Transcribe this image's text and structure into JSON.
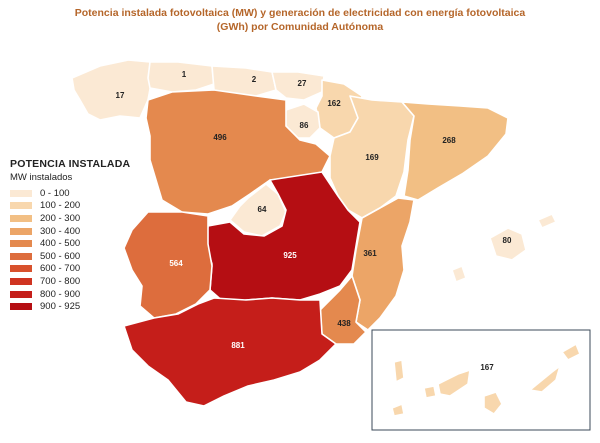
{
  "title_line1": "Potencia instalada fotovoltaica (MW) y generación de electricidad con energía fotovoltaica",
  "title_line2": "(GWh) por Comunidad Autónoma",
  "legend": {
    "title": "POTENCIA INSTALADA",
    "subtitle": "MW instalados",
    "items": [
      {
        "label": "0 - 100",
        "color": "#fbe9d4"
      },
      {
        "label": "100 - 200",
        "color": "#f8d7ad"
      },
      {
        "label": "200 - 300",
        "color": "#f2bf84"
      },
      {
        "label": "300 - 400",
        "color": "#eca567"
      },
      {
        "label": "400 - 500",
        "color": "#e4894e"
      },
      {
        "label": "500 - 600",
        "color": "#dd6d3d"
      },
      {
        "label": "600 - 700",
        "color": "#d8512d"
      },
      {
        "label": "700 - 800",
        "color": "#cf3421"
      },
      {
        "label": "800 - 900",
        "color": "#c51e1a"
      },
      {
        "label": "900 - 925",
        "color": "#b50e13"
      }
    ]
  },
  "regions": [
    {
      "id": "galicia",
      "value": "17",
      "color": "#fbe9d4"
    },
    {
      "id": "asturias",
      "value": "1",
      "color": "#fbe9d4"
    },
    {
      "id": "cantabria",
      "value": "2",
      "color": "#fbe9d4"
    },
    {
      "id": "pais-vasco",
      "value": "27",
      "color": "#fbe9d4"
    },
    {
      "id": "navarra",
      "value": "162",
      "color": "#f8d7ad"
    },
    {
      "id": "la-rioja",
      "value": "86",
      "color": "#fbe9d4"
    },
    {
      "id": "castilla-leon",
      "value": "496",
      "color": "#e4894e"
    },
    {
      "id": "aragon",
      "value": "169",
      "color": "#f8d7ad"
    },
    {
      "id": "cataluna",
      "value": "268",
      "color": "#f2bf84"
    },
    {
      "id": "madrid",
      "value": "64",
      "color": "#fbe9d4"
    },
    {
      "id": "castilla-la-mancha",
      "value": "925",
      "color": "#b50e13"
    },
    {
      "id": "extremadura",
      "value": "564",
      "color": "#dd6d3d"
    },
    {
      "id": "comunidad-valenciana",
      "value": "361",
      "color": "#eca567"
    },
    {
      "id": "islas-baleares",
      "value": "80",
      "color": "#fbe9d4"
    },
    {
      "id": "murcia",
      "value": "438",
      "color": "#e4894e"
    },
    {
      "id": "andalucia",
      "value": "881",
      "color": "#c51e1a"
    },
    {
      "id": "canarias",
      "value": "167",
      "color": "#f8d7ad"
    }
  ]
}
